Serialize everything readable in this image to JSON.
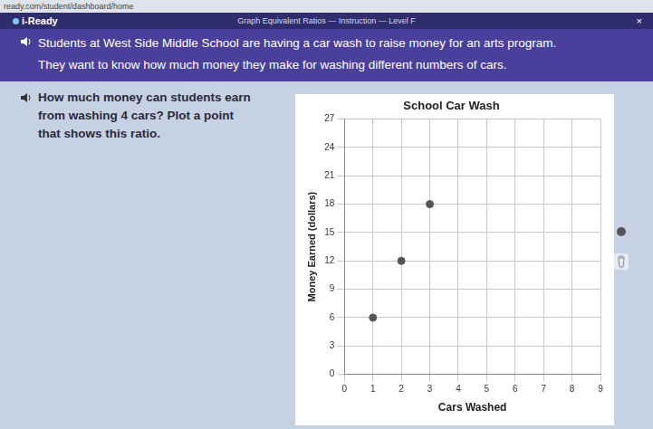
{
  "browser": {
    "url": "ready.com/student/dashboard/home"
  },
  "header": {
    "brand": "i-Ready",
    "title": "Graph Equivalent Ratios — Instruction — Level F",
    "close": "×"
  },
  "banner": {
    "lines": [
      "Students at West Side Middle School are having a car wash to raise money for an arts program.",
      "They want to know how much money they make for washing different numbers of cars."
    ]
  },
  "question": {
    "lines": [
      "How much money can students earn",
      "from washing 4 cars? Plot a point",
      "that shows this ratio."
    ]
  },
  "chart_data": {
    "type": "scatter",
    "title": "School Car Wash",
    "x_label": "Cars Washed",
    "y_label": "Money Earned (dollars)",
    "x": [
      1,
      2,
      3
    ],
    "values": [
      6,
      12,
      18
    ],
    "color": "#555555",
    "marker": "circle",
    "xlim": [
      0,
      9
    ],
    "xticks": [
      0,
      1,
      2,
      3,
      4,
      5,
      6,
      7,
      8,
      9
    ],
    "ylim": [
      0,
      27
    ],
    "yticks": [
      0,
      3,
      6,
      9,
      12,
      15,
      18,
      21,
      24,
      27
    ],
    "grid": true
  }
}
